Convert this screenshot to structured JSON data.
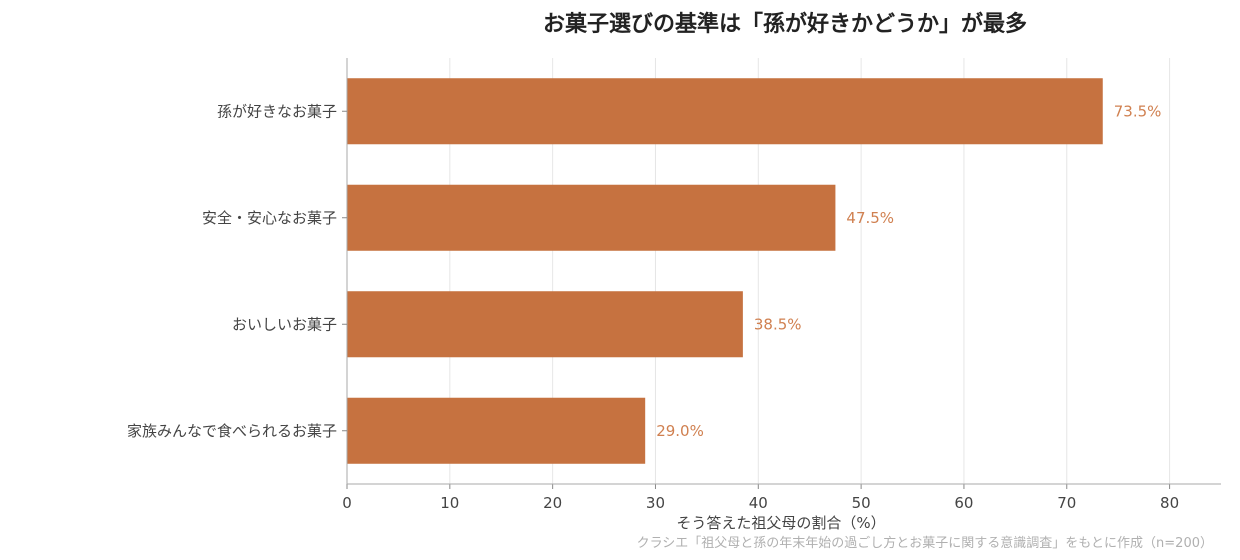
{
  "chart_data": {
    "type": "bar",
    "orientation": "horizontal",
    "title": "お菓子選びの基準は「孫が好きかどうか」が最多",
    "xlabel": "そう答えた祖父母の割合（%）",
    "ylabel": "",
    "categories": [
      "孫が好きなお菓子",
      "安全・安心なお菓子",
      "おいしいお菓子",
      "家族みんなで食べられるお菓子"
    ],
    "values": [
      73.5,
      47.5,
      38.5,
      29.0
    ],
    "data_labels": [
      "73.5%",
      "47.5%",
      "38.5%",
      "29.0%"
    ],
    "xlim": [
      0,
      85
    ],
    "xticks": [
      0,
      10,
      20,
      30,
      40,
      50,
      60,
      70,
      80
    ],
    "grid": "vertical",
    "legend": "none",
    "bar_color": "#C67240",
    "label_color": "#D08050",
    "source": "クラシエ「祖父母と孫の年末年始の過ごし方とお菓子に関する意識調査」をもとに作成（n=200）"
  }
}
